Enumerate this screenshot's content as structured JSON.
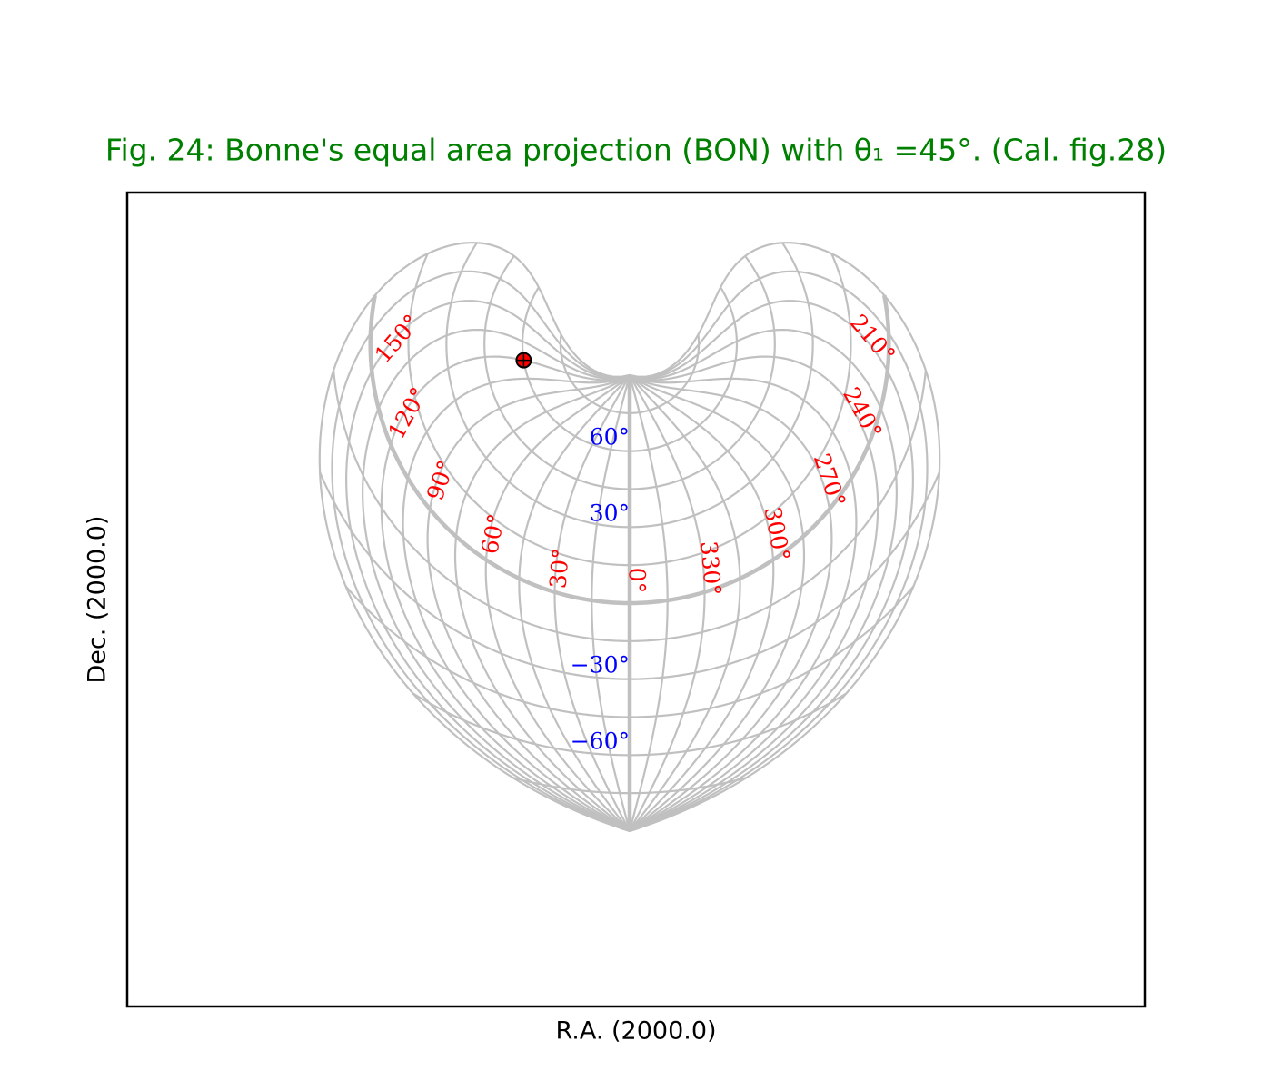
{
  "chart_data": {
    "type": "bonne",
    "title": "Fig. 24: Bonne's equal area projection (BON) with θ₁ =45°. (Cal. fig.28)",
    "xlabel": "R.A. (2000.0)",
    "ylabel": "Dec. (2000.0)",
    "theta1": 45,
    "grid_color": "#c0c0c0",
    "ra_grid": [
      0,
      15,
      30,
      45,
      60,
      75,
      90,
      105,
      120,
      135,
      150,
      165,
      180,
      195,
      210,
      225,
      240,
      255,
      270,
      285,
      300,
      315,
      330,
      345
    ],
    "dec_grid": [
      -75,
      -60,
      -45,
      -30,
      -15,
      0,
      15,
      30,
      45,
      60,
      75
    ],
    "ra_ticks_color": "#ff0000",
    "ra_ticks": [
      {
        "value": 0,
        "label": "0°"
      },
      {
        "value": 30,
        "label": "30°"
      },
      {
        "value": 60,
        "label": "60°"
      },
      {
        "value": 90,
        "label": "90°"
      },
      {
        "value": 120,
        "label": "120°"
      },
      {
        "value": 150,
        "label": "150°"
      },
      {
        "value": 210,
        "label": "210°"
      },
      {
        "value": 240,
        "label": "240°"
      },
      {
        "value": 270,
        "label": "270°"
      },
      {
        "value": 300,
        "label": "300°"
      },
      {
        "value": 330,
        "label": "330°"
      }
    ],
    "dec_ticks_color": "#0000ff",
    "dec_ticks": [
      {
        "value": 60,
        "label": "60°"
      },
      {
        "value": 30,
        "label": "30°"
      },
      {
        "value": -30,
        "label": "−30°"
      },
      {
        "value": -60,
        "label": "−60°"
      }
    ],
    "points": [
      {
        "ra": 120,
        "dec": 60,
        "color": "#ff0000"
      }
    ]
  }
}
